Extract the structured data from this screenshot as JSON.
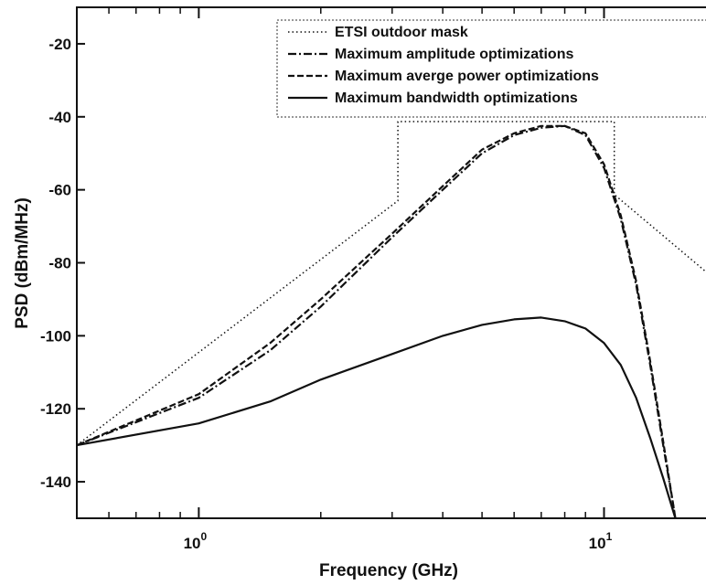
{
  "chart_data": {
    "type": "line",
    "title": "",
    "xlabel": "Frequency (GHz)",
    "ylabel": "PSD (dBm/MHz)",
    "xscale": "log",
    "xlim": [
      0.5,
      19
    ],
    "ylim": [
      -150,
      -10
    ],
    "xticks": [
      {
        "value": 1,
        "base": "10",
        "exp": "0"
      },
      {
        "value": 10,
        "base": "10",
        "exp": "1"
      }
    ],
    "yticks": [
      -20,
      -40,
      -60,
      -80,
      -100,
      -120,
      -140
    ],
    "grid": false,
    "legend_position": "top-right",
    "series": [
      {
        "name": "ETSI outdoor mask",
        "style": "dotted",
        "x": [
          0.5,
          3.1,
          3.1,
          10.6,
          10.6,
          19
        ],
        "y": [
          -130,
          -63,
          -41.3,
          -41.3,
          -61.3,
          -85
        ]
      },
      {
        "name": "Maximum amplitude optimizations",
        "style": "dashdot",
        "x": [
          0.5,
          1.0,
          1.5,
          2.0,
          3.0,
          4.0,
          5.0,
          6.0,
          7.0,
          8.0,
          9.0,
          10.0,
          11.0,
          12.0,
          13.0,
          14.0,
          15.0
        ],
        "y": [
          -130,
          -117,
          -104,
          -92,
          -73,
          -60,
          -50,
          -45,
          -43,
          -42.5,
          -45,
          -54,
          -68,
          -86,
          -108,
          -130,
          -150
        ]
      },
      {
        "name": "Maximum averge power optimizations",
        "style": "dashed",
        "x": [
          0.5,
          1.0,
          1.5,
          2.0,
          3.0,
          4.0,
          5.0,
          6.0,
          7.0,
          8.0,
          9.0,
          10.0,
          11.0,
          12.0,
          13.0,
          14.0,
          15.0
        ],
        "y": [
          -130,
          -116,
          -102,
          -90,
          -72,
          -59,
          -49,
          -44.5,
          -42.5,
          -42.5,
          -44.5,
          -53,
          -67,
          -85,
          -107,
          -129,
          -150
        ]
      },
      {
        "name": "Maximum bandwidth optimizations",
        "style": "solid",
        "x": [
          0.5,
          1.0,
          1.5,
          2.0,
          3.0,
          4.0,
          5.0,
          6.0,
          7.0,
          8.0,
          9.0,
          10.0,
          11.0,
          12.0,
          13.0,
          14.0,
          15.0
        ],
        "y": [
          -130,
          -124,
          -118,
          -112,
          -105,
          -100,
          -97,
          -95.5,
          -95,
          -96,
          -98,
          -102,
          -108,
          -117,
          -128,
          -139,
          -150
        ]
      }
    ]
  }
}
